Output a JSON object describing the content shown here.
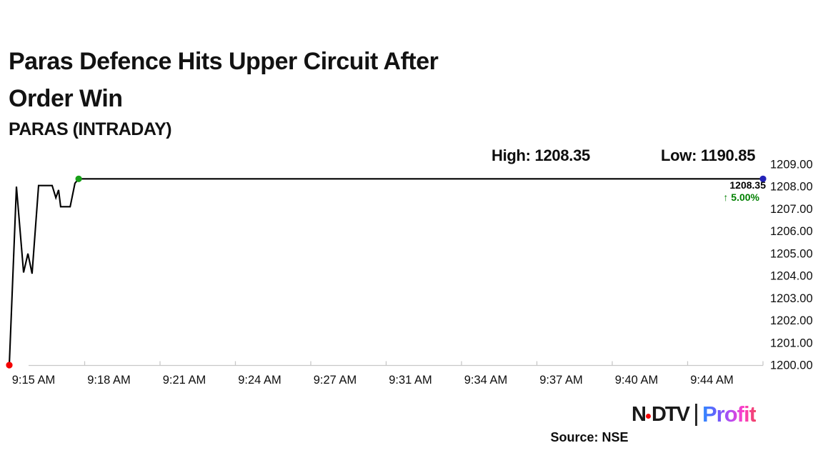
{
  "header": {
    "title_line1": "Paras Defence Hits Upper Circuit After",
    "title_line2": "Order Win",
    "subtitle": "PARAS (INTRADAY)",
    "high_label": "High: 1208.35",
    "low_label": "Low: 1190.85"
  },
  "chart_data": {
    "type": "line",
    "title": "PARAS (INTRADAY)",
    "xlabel": "",
    "ylabel": "",
    "x_tick_labels": [
      "9:15 AM",
      "9:18 AM",
      "9:21 AM",
      "9:24 AM",
      "9:27 AM",
      "9:31 AM",
      "9:34 AM",
      "9:37 AM",
      "9:40 AM",
      "9:44 AM"
    ],
    "x_range_minutes": [
      0,
      32.7
    ],
    "ylim": [
      1200,
      1209
    ],
    "y_tick_step": 1,
    "y_tick_format_decimals": 2,
    "y_axis_side": "right",
    "grid": false,
    "legend": "none",
    "high": 1208.35,
    "low": 1190.85,
    "last_price": "1208.35",
    "change_pct": "↑ 5.00%",
    "series": [
      {
        "name": "PARAS intraday price",
        "color": "#000000",
        "points": [
          [
            0.0,
            1200.0
          ],
          [
            0.31,
            1208.0
          ],
          [
            0.62,
            1204.15
          ],
          [
            0.81,
            1205.0
          ],
          [
            0.99,
            1204.1
          ],
          [
            1.27,
            1208.05
          ],
          [
            1.86,
            1208.05
          ],
          [
            2.02,
            1207.5
          ],
          [
            2.14,
            1207.85
          ],
          [
            2.23,
            1207.1
          ],
          [
            2.64,
            1207.1
          ],
          [
            2.85,
            1208.15
          ],
          [
            3.01,
            1208.35
          ],
          [
            32.7,
            1208.35
          ]
        ]
      }
    ],
    "markers": [
      {
        "name": "session-open-low-marker",
        "x_min": 0.0,
        "price": 1200.0,
        "color": "#f40000"
      },
      {
        "name": "upper-circuit-hit-marker",
        "x_min": 3.01,
        "price": 1208.35,
        "color": "#18a018"
      },
      {
        "name": "latest-price-marker",
        "x_min": 32.7,
        "price": 1208.35,
        "color": "#2322b8"
      }
    ]
  },
  "footer": {
    "source": "Source: NSE",
    "logo": {
      "n": "N",
      "dtv": "DTV",
      "profit": "Profit"
    }
  },
  "colors": {
    "accent_green": "#008000",
    "line_black": "#000000",
    "axis_gray": "#c8c8c8",
    "marker_red": "#f40000",
    "marker_green": "#18a018",
    "marker_blue": "#2322b8",
    "profit_gradient": [
      "#2e8bff",
      "#6a5bfb",
      "#b44df2",
      "#ff3ec9",
      "#ef4363"
    ]
  }
}
